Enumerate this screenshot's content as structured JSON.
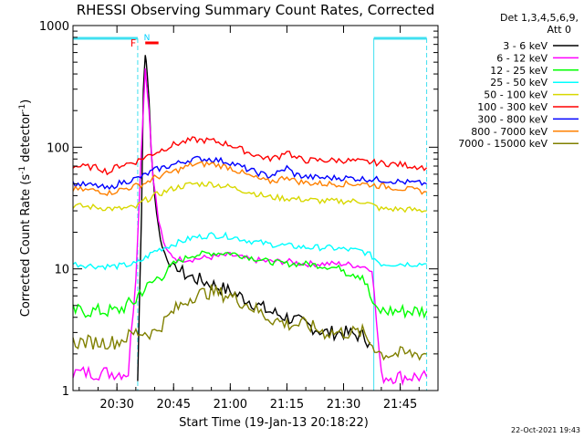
{
  "chart_data": {
    "type": "line",
    "title": "RHESSI Observing Summary Count Rates, Corrected",
    "xlabel": "Start Time (19-Jan-13 20:18:22)",
    "ylabel": "Corrected Count Rate (s",
    "ylabel_sup1": "-1",
    "ylabel_mid": " detector",
    "ylabel_sup2": "-1",
    "ylabel_end": ")",
    "y_scale": "log",
    "ylim": [
      1,
      1000
    ],
    "xlim": [
      "20:18:22",
      "21:55:00"
    ],
    "x_ticks": [
      "20:30",
      "20:45",
      "21:00",
      "21:15",
      "21:30",
      "21:45"
    ],
    "y_ticks": [
      "1",
      "10",
      "100",
      "1000"
    ],
    "legend_header": [
      "Det 1,3,4,5,6,9,",
      "Att 0"
    ],
    "legend_position": "right",
    "markers": {
      "flare_label": "F",
      "night_label": "N",
      "flare_color": "#ff0000",
      "night_color": "#00d0ff",
      "flare_interval": [
        "20:37:30",
        "20:41:00"
      ]
    },
    "annotation_intervals": [
      {
        "label": "",
        "color": "#40e0f0",
        "start": "20:18:22",
        "end": "20:35:30"
      },
      {
        "label": "",
        "color": "#40e0f0",
        "start": "21:38:00",
        "end": "21:52:00"
      }
    ],
    "timestamp": "22-Oct-2021 19:43",
    "series": [
      {
        "name": "3 - 6 keV",
        "color": "#000000",
        "x": [
          "20:35:30",
          "20:36:30",
          "20:37:00",
          "20:37:30",
          "20:38:00",
          "20:38:30",
          "20:39:00",
          "20:40:00",
          "20:41:00",
          "20:42:00",
          "20:44:00",
          "20:46:00",
          "20:48:00",
          "20:50:00",
          "20:55:00",
          "21:00:00",
          "21:05:00",
          "21:10:00",
          "21:15:00",
          "21:20:00",
          "21:25:00",
          "21:30:00",
          "21:35:00",
          "21:37:00"
        ],
        "y": [
          1.2,
          30,
          300,
          600,
          400,
          250,
          100,
          40,
          22,
          15,
          11,
          10,
          9,
          8.5,
          7.5,
          6.5,
          5.5,
          4.5,
          4,
          3.5,
          3,
          3,
          2.8,
          2.5
        ]
      },
      {
        "name": "6 - 12 keV",
        "color": "#ff00ff",
        "x": [
          "20:18:22",
          "20:30:00",
          "20:33:00",
          "20:35:00",
          "20:36:30",
          "20:37:30",
          "20:38:30",
          "20:39:30",
          "20:41:00",
          "20:43:00",
          "20:46:00",
          "20:50:00",
          "20:55:00",
          "21:00:00",
          "21:05:00",
          "21:10:00",
          "21:15:00",
          "21:20:00",
          "21:25:00",
          "21:30:00",
          "21:35:00",
          "21:37:30",
          "21:40:00",
          "21:45:00",
          "21:50:00",
          "21:52:00"
        ],
        "y": [
          1.4,
          1.4,
          1.4,
          9,
          100,
          450,
          200,
          60,
          25,
          14,
          12,
          12,
          12.5,
          13,
          12,
          11.5,
          11.5,
          11,
          11,
          11,
          10.5,
          10,
          1.3,
          1.3,
          1.3,
          1.3
        ]
      },
      {
        "name": "12 - 25 keV",
        "color": "#00ff00",
        "x": [
          "20:18:22",
          "20:25:00",
          "20:30:00",
          "20:35:00",
          "20:36:00",
          "20:38:00",
          "20:40:00",
          "20:45:00",
          "20:50:00",
          "20:55:00",
          "21:00:00",
          "21:05:00",
          "21:10:00",
          "21:15:00",
          "21:20:00",
          "21:25:00",
          "21:30:00",
          "21:35:00",
          "21:37:00",
          "21:38:30",
          "21:45:00",
          "21:52:00"
        ],
        "y": [
          4.5,
          4.5,
          4.5,
          5.5,
          6.5,
          7,
          8,
          11,
          13,
          13.5,
          13.5,
          12.5,
          11.5,
          11,
          11,
          10.5,
          10,
          9,
          6,
          4.5,
          4.5,
          4.5
        ]
      },
      {
        "name": "25 - 50 keV",
        "color": "#00ffff",
        "x": [
          "20:18:22",
          "20:25:00",
          "20:30:00",
          "20:35:00",
          "20:37:00",
          "20:40:00",
          "20:45:00",
          "20:50:00",
          "20:55:00",
          "21:00:00",
          "21:05:00",
          "21:10:00",
          "21:15:00",
          "21:20:00",
          "21:25:00",
          "21:30:00",
          "21:35:00",
          "21:37:00",
          "21:40:00",
          "21:45:00",
          "21:52:00"
        ],
        "y": [
          11,
          10.5,
          10.5,
          11,
          12,
          14,
          16,
          18,
          19,
          18.5,
          17,
          16,
          15.5,
          15,
          15,
          14.5,
          14,
          13,
          11,
          11,
          11
        ]
      },
      {
        "name": "50 - 100 keV",
        "color": "#d8d800",
        "x": [
          "20:18:22",
          "20:25:00",
          "20:30:00",
          "20:35:00",
          "20:37:00",
          "20:40:00",
          "20:45:00",
          "20:50:00",
          "20:55:00",
          "21:00:00",
          "21:05:00",
          "21:10:00",
          "21:15:00",
          "21:20:00",
          "21:25:00",
          "21:30:00",
          "21:35:00",
          "21:37:00",
          "21:40:00",
          "21:45:00",
          "21:52:00"
        ],
        "y": [
          33,
          32,
          31,
          32,
          36,
          40,
          46,
          50,
          50,
          47,
          43,
          39,
          38,
          37,
          36,
          36,
          36,
          34,
          31,
          31,
          30
        ]
      },
      {
        "name": "100 - 300 keV",
        "color": "#ff0000",
        "x": [
          "20:18:22",
          "20:25:00",
          "20:28:00",
          "20:30:00",
          "20:35:00",
          "20:37:00",
          "20:40:00",
          "20:45:00",
          "20:50:00",
          "20:55:00",
          "21:00:00",
          "21:05:00",
          "21:10:00",
          "21:13:00",
          "21:15:00",
          "21:17:00",
          "21:20:00",
          "21:25:00",
          "21:30:00",
          "21:35:00",
          "21:40:00",
          "21:45:00",
          "21:52:00"
        ],
        "y": [
          70,
          68,
          62,
          70,
          76,
          82,
          90,
          105,
          115,
          113,
          105,
          90,
          80,
          84,
          95,
          82,
          78,
          78,
          78,
          76,
          74,
          72,
          68
        ]
      },
      {
        "name": "300 - 800 keV",
        "color": "#0000ff",
        "x": [
          "20:18:22",
          "20:25:00",
          "20:28:00",
          "20:30:00",
          "20:35:00",
          "20:37:00",
          "20:40:00",
          "20:45:00",
          "20:50:00",
          "20:55:00",
          "21:00:00",
          "21:05:00",
          "21:10:00",
          "21:13:00",
          "21:15:00",
          "21:17:00",
          "21:20:00",
          "21:25:00",
          "21:30:00",
          "21:35:00",
          "21:40:00",
          "21:45:00",
          "21:52:00"
        ],
        "y": [
          50,
          48,
          45,
          50,
          55,
          58,
          65,
          72,
          80,
          80,
          75,
          65,
          58,
          62,
          68,
          60,
          57,
          56,
          56,
          55,
          54,
          52,
          50
        ]
      },
      {
        "name": "800 - 7000 keV",
        "color": "#ff8000",
        "x": [
          "20:18:22",
          "20:25:00",
          "20:28:00",
          "20:30:00",
          "20:35:00",
          "20:37:00",
          "20:40:00",
          "20:45:00",
          "20:50:00",
          "20:55:00",
          "21:00:00",
          "21:05:00",
          "21:10:00",
          "21:13:00",
          "21:15:00",
          "21:17:00",
          "21:20:00",
          "21:25:00",
          "21:30:00",
          "21:35:00",
          "21:40:00",
          "21:45:00",
          "21:52:00"
        ],
        "y": [
          45,
          44,
          42,
          44,
          48,
          50,
          56,
          63,
          72,
          73,
          68,
          58,
          52,
          54,
          58,
          53,
          51,
          50,
          50,
          50,
          48,
          46,
          43
        ]
      },
      {
        "name": "7000 - 15000 keV",
        "color": "#808000",
        "x": [
          "20:18:22",
          "20:25:00",
          "20:30:00",
          "20:35:00",
          "20:38:00",
          "20:40:00",
          "20:45:00",
          "20:50:00",
          "20:55:00",
          "21:00:00",
          "21:05:00",
          "21:10:00",
          "21:15:00",
          "21:20:00",
          "21:25:00",
          "21:30:00",
          "21:35:00",
          "21:37:00",
          "21:40:00",
          "21:45:00",
          "21:52:00"
        ],
        "y": [
          2.5,
          2.5,
          2.5,
          3,
          3,
          3,
          4.5,
          6,
          6.5,
          6,
          5,
          4,
          3.5,
          3.5,
          3,
          3,
          3,
          2.5,
          2,
          2,
          2
        ]
      }
    ]
  }
}
